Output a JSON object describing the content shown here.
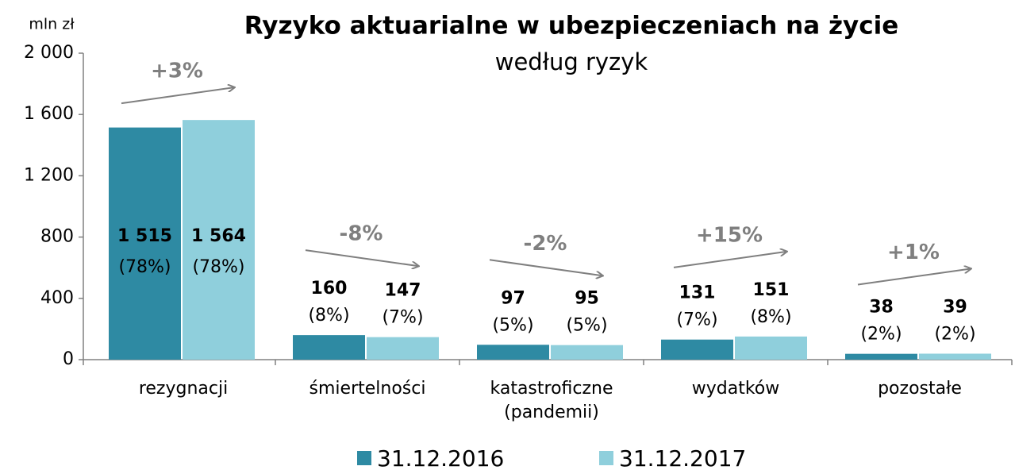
{
  "chart_data": {
    "type": "bar",
    "title": "Ryzyko aktuarialne w ubezpieczeniach na życie",
    "subtitle": "według ryzyk",
    "y_axis_label": "mln zł",
    "categories": [
      "rezygnacji",
      "śmiertelności",
      "katastroficzne (pandemii)",
      "wydatków",
      "pozostałe"
    ],
    "series": [
      {
        "name": "31.12.2016",
        "color": "#2e8aa3",
        "values": [
          1515,
          160,
          97,
          131,
          38
        ],
        "value_labels": [
          "1 515",
          "160",
          "97",
          "131",
          "38"
        ],
        "shares": [
          78,
          8,
          5,
          7,
          2
        ],
        "share_labels": [
          "(78%)",
          "(8%)",
          "(5%)",
          "(7%)",
          "(2%)"
        ]
      },
      {
        "name": "31.12.2017",
        "color": "#8fcfdc",
        "values": [
          1564,
          147,
          95,
          151,
          39
        ],
        "value_labels": [
          "1 564",
          "147",
          "95",
          "151",
          "39"
        ],
        "shares": [
          78,
          7,
          5,
          8,
          2
        ],
        "share_labels": [
          "(78%)",
          "(7%)",
          "(5%)",
          "(8%)",
          "(2%)"
        ]
      }
    ],
    "changes": [
      3,
      -8,
      -2,
      15,
      1
    ],
    "change_labels": [
      "+3%",
      "-8%",
      "-2%",
      "+15%",
      "+1%"
    ],
    "ylim": [
      0,
      2000
    ],
    "yticks": [
      0,
      400,
      800,
      {
        "value": 1200,
        "label": "1 200"
      },
      {
        "value": 1600,
        "label": "1 600"
      },
      {
        "value": 2000,
        "label": "2 000"
      }
    ],
    "grid": false
  }
}
